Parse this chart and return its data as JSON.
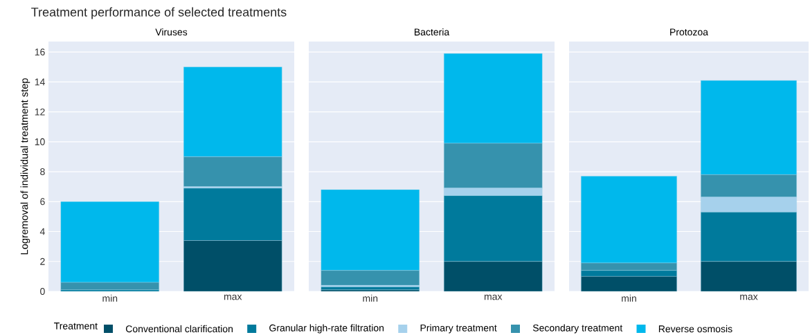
{
  "chart_data": [
    {
      "type": "bar",
      "stacked": true,
      "title": "Treatment performance of selected treatments",
      "subtitle": "Viruses",
      "ylabel": "Logremoval of individual treatment step",
      "categories": [
        "min",
        "max"
      ],
      "ylim": [
        0,
        16.7
      ],
      "yticks": [
        0,
        2,
        4,
        6,
        8,
        10,
        12,
        14,
        16
      ],
      "grid": "y",
      "legend": "bottom",
      "legend_title": "Treatment",
      "series": [
        {
          "name": "Conventional clarification",
          "color": "#004f68",
          "values": [
            0,
            3.4
          ]
        },
        {
          "name": "Granular high-rate filtration",
          "color": "#007a9c",
          "values": [
            0.1,
            3.5
          ]
        },
        {
          "name": "Primary treatment",
          "color": "#a6d1ec",
          "values": [
            0,
            0.1
          ]
        },
        {
          "name": "Secondary treatment",
          "color": "#3692ad",
          "values": [
            0.5,
            2
          ]
        },
        {
          "name": "Reverse osmosis",
          "color": "#00b8ec",
          "values": [
            5.4,
            6
          ]
        }
      ]
    },
    {
      "type": "bar",
      "stacked": true,
      "subtitle": "Bacteria",
      "categories": [
        "min",
        "max"
      ],
      "ylim": [
        0,
        16.7
      ],
      "yticks": [
        0,
        2,
        4,
        6,
        8,
        10,
        12,
        14,
        16
      ],
      "grid": "y",
      "tick_labels": "x",
      "series": [
        {
          "color": "#004f68",
          "values": [
            0.1,
            2
          ]
        },
        {
          "color": "#007a9c",
          "values": [
            0.2,
            4.4
          ]
        },
        {
          "color": "#a6d1ec",
          "values": [
            0.1,
            0.5
          ]
        },
        {
          "color": "#3692ad",
          "values": [
            1.0,
            3
          ]
        },
        {
          "color": "#00b8ec",
          "values": [
            5.4,
            6
          ]
        }
      ]
    },
    {
      "type": "bar",
      "stacked": true,
      "subtitle": "Protozoa",
      "categories": [
        "min",
        "max"
      ],
      "ylim": [
        0,
        16.7
      ],
      "yticks": [
        0,
        2,
        4,
        6,
        8,
        10,
        12,
        14,
        16
      ],
      "grid": "y",
      "tick_labels": "x",
      "series": [
        {
          "color": "#004f68",
          "values": [
            1.0,
            2
          ]
        },
        {
          "color": "#007a9c",
          "values": [
            0.4,
            3.3
          ]
        },
        {
          "color": "#a6d1ec",
          "values": [
            0,
            1
          ]
        },
        {
          "color": "#3692ad",
          "values": [
            0.5,
            1.5
          ]
        },
        {
          "color": "#00b8ec",
          "values": [
            5.8,
            6.3
          ]
        }
      ]
    }
  ]
}
